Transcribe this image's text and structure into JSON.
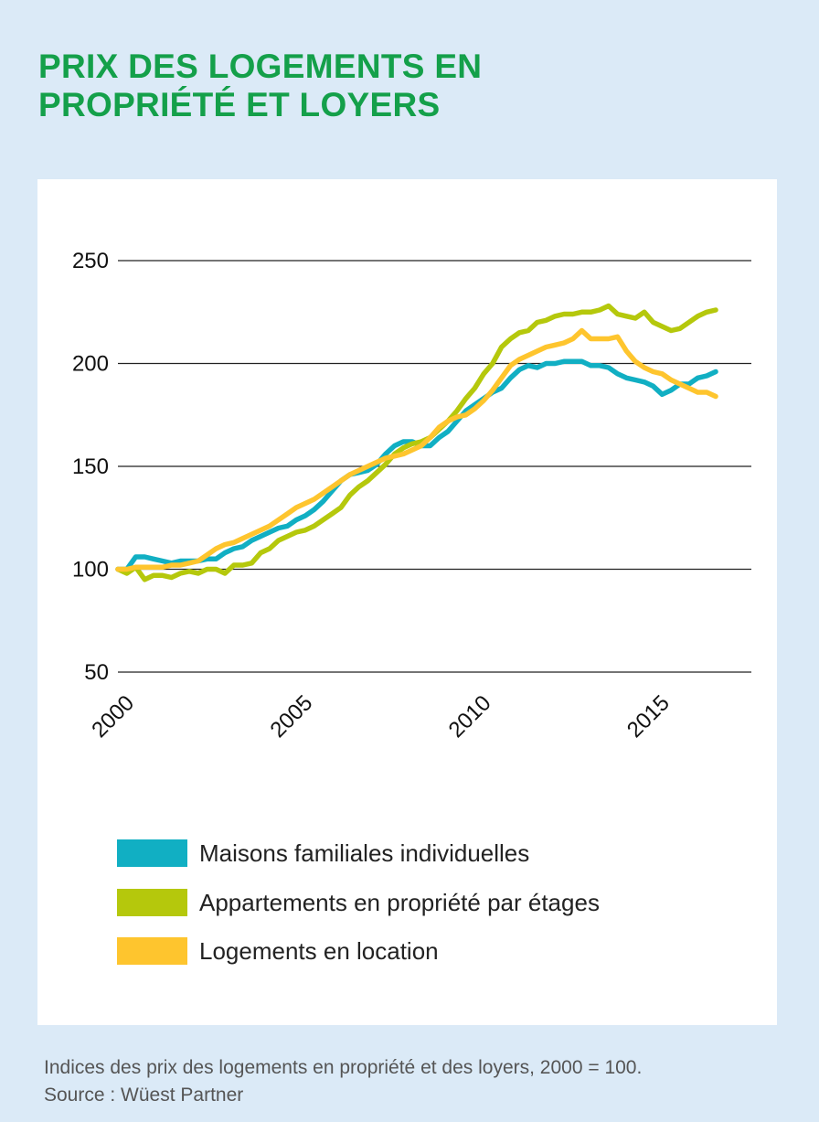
{
  "title_lines": [
    "PRIX DES LOGEMENTS EN",
    "PROPRIÉTÉ ET LOYERS"
  ],
  "colors": {
    "title": "#14a04a",
    "background": "#dbeaf7",
    "panel": "#ffffff",
    "grid": "#222222",
    "maisons": "#11afc3",
    "appartements": "#b5c80c",
    "location": "#fec52e"
  },
  "footnote": {
    "line1": "Indices des prix des logements en propriété et des loyers, 2000 = 100.",
    "line2": "Source : Wüest Partner"
  },
  "chart_data": {
    "type": "line",
    "xlim": [
      2000,
      2017.75
    ],
    "ylim": [
      50,
      250
    ],
    "yticks": [
      50,
      100,
      150,
      200,
      250
    ],
    "xticks": [
      2000,
      2005,
      2010,
      2015
    ],
    "ytick_labels": [
      "50",
      "100",
      "150",
      "200",
      "250"
    ],
    "xtick_labels": [
      "2000",
      "2005",
      "2010",
      "2015"
    ],
    "grid": "horizontal",
    "legend_position": "bottom",
    "x_start": 2000,
    "x_step": 0.25,
    "series": [
      {
        "name": "Maisons familiales individuelles",
        "color": "#11afc3",
        "values": [
          100,
          100,
          106,
          106,
          105,
          104,
          103,
          104,
          104,
          104,
          105,
          105,
          108,
          110,
          111,
          114,
          116,
          118,
          120,
          121,
          124,
          126,
          129,
          133,
          138,
          143,
          146,
          147,
          148,
          151,
          156,
          160,
          162,
          162,
          160,
          160,
          164,
          167,
          172,
          177,
          180,
          183,
          186,
          188,
          193,
          197,
          199,
          198,
          200,
          200,
          201,
          201,
          201,
          199,
          199,
          198,
          195,
          193,
          192,
          191,
          189,
          185,
          187,
          190,
          190,
          193,
          194,
          196
        ]
      },
      {
        "name": "Appartements en propriété par étages",
        "color": "#b5c80c",
        "values": [
          100,
          98,
          101,
          95,
          97,
          97,
          96,
          98,
          99,
          98,
          100,
          100,
          98,
          102,
          102,
          103,
          108,
          110,
          114,
          116,
          118,
          119,
          121,
          124,
          127,
          130,
          136,
          140,
          143,
          147,
          151,
          156,
          159,
          161,
          162,
          164,
          168,
          172,
          177,
          183,
          188,
          195,
          200,
          208,
          212,
          215,
          216,
          220,
          221,
          223,
          224,
          224,
          225,
          225,
          226,
          228,
          224,
          223,
          222,
          225,
          220,
          218,
          216,
          217,
          220,
          223,
          225,
          226
        ]
      },
      {
        "name": "Logements en location",
        "color": "#fec52e",
        "values": [
          100,
          100,
          101,
          101,
          101,
          101,
          102,
          102,
          103,
          104,
          107,
          110,
          112,
          113,
          115,
          117,
          119,
          121,
          124,
          127,
          130,
          132,
          134,
          137,
          140,
          143,
          146,
          148,
          150,
          152,
          154,
          155,
          156,
          158,
          160,
          164,
          169,
          172,
          174,
          175,
          178,
          182,
          187,
          193,
          199,
          202,
          204,
          206,
          208,
          209,
          210,
          212,
          216,
          212,
          212,
          212,
          213,
          206,
          201,
          198,
          196,
          195,
          192,
          190,
          188,
          186,
          186,
          184
        ]
      }
    ]
  }
}
